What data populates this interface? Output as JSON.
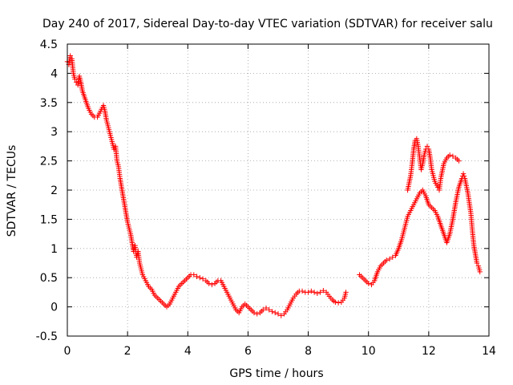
{
  "chart_data": {
    "type": "scatter",
    "title": "Day 240 of 2017, Sidereal Day-to-day VTEC variation (SDTVAR) for receiver salu",
    "xlabel": "GPS time / hours",
    "ylabel": "SDTVAR / TECUs",
    "xlim": [
      0,
      14
    ],
    "ylim": [
      -0.5,
      4.5
    ],
    "grid": true,
    "marker": "plus",
    "color": "#ff0000",
    "x_ticks": [
      0,
      2,
      4,
      6,
      8,
      10,
      12,
      14
    ],
    "x_tick_labels": [
      "0",
      "2",
      "4",
      "6",
      "8",
      "10",
      "12",
      "14"
    ],
    "y_ticks": [
      -0.5,
      0,
      0.5,
      1,
      1.5,
      2,
      2.5,
      3,
      3.5,
      4,
      4.5
    ],
    "y_tick_labels": [
      "-0.5",
      "0",
      "0.5",
      "1",
      "1.5",
      "2",
      "2.5",
      "3",
      "3.5",
      "4",
      "4.5"
    ],
    "series": [
      {
        "name": "segment-1",
        "points": [
          [
            0.0,
            4.2
          ],
          [
            0.05,
            4.15
          ],
          [
            0.1,
            4.3
          ],
          [
            0.15,
            4.25
          ],
          [
            0.2,
            4.0
          ],
          [
            0.25,
            3.9
          ],
          [
            0.3,
            3.85
          ],
          [
            0.35,
            3.8
          ],
          [
            0.4,
            3.95
          ],
          [
            0.45,
            3.85
          ],
          [
            0.5,
            3.7
          ],
          [
            0.6,
            3.55
          ],
          [
            0.7,
            3.4
          ],
          [
            0.8,
            3.3
          ],
          [
            0.9,
            3.25
          ],
          [
            1.0,
            3.25
          ],
          [
            1.1,
            3.35
          ],
          [
            1.2,
            3.45
          ],
          [
            1.25,
            3.35
          ],
          [
            1.3,
            3.2
          ],
          [
            1.4,
            3.0
          ],
          [
            1.5,
            2.8
          ],
          [
            1.55,
            2.7
          ],
          [
            1.6,
            2.75
          ],
          [
            1.65,
            2.5
          ],
          [
            1.7,
            2.4
          ],
          [
            1.75,
            2.2
          ],
          [
            1.8,
            2.05
          ],
          [
            1.85,
            1.9
          ],
          [
            1.9,
            1.75
          ],
          [
            1.95,
            1.6
          ],
          [
            2.0,
            1.45
          ],
          [
            2.05,
            1.35
          ],
          [
            2.1,
            1.25
          ],
          [
            2.15,
            1.1
          ],
          [
            2.2,
            0.95
          ],
          [
            2.25,
            1.05
          ],
          [
            2.3,
            0.85
          ],
          [
            2.35,
            0.95
          ],
          [
            2.4,
            0.75
          ],
          [
            2.45,
            0.65
          ],
          [
            2.5,
            0.55
          ],
          [
            2.6,
            0.45
          ],
          [
            2.7,
            0.35
          ],
          [
            2.8,
            0.3
          ],
          [
            2.9,
            0.2
          ],
          [
            3.0,
            0.15
          ],
          [
            3.1,
            0.1
          ],
          [
            3.2,
            0.05
          ],
          [
            3.3,
            0.0
          ],
          [
            3.4,
            0.05
          ],
          [
            3.5,
            0.15
          ],
          [
            3.6,
            0.25
          ],
          [
            3.7,
            0.35
          ],
          [
            3.8,
            0.4
          ],
          [
            3.9,
            0.45
          ],
          [
            4.0,
            0.5
          ],
          [
            4.1,
            0.55
          ],
          [
            4.2,
            0.55
          ],
          [
            4.3,
            0.52
          ],
          [
            4.4,
            0.5
          ],
          [
            4.5,
            0.48
          ],
          [
            4.6,
            0.45
          ],
          [
            4.7,
            0.4
          ],
          [
            4.8,
            0.38
          ],
          [
            4.9,
            0.4
          ],
          [
            5.0,
            0.45
          ],
          [
            5.1,
            0.45
          ],
          [
            5.2,
            0.35
          ],
          [
            5.3,
            0.25
          ],
          [
            5.4,
            0.15
          ],
          [
            5.5,
            0.05
          ],
          [
            5.6,
            -0.05
          ],
          [
            5.7,
            -0.1
          ],
          [
            5.8,
            0.0
          ],
          [
            5.9,
            0.05
          ],
          [
            6.0,
            0.0
          ],
          [
            6.1,
            -0.05
          ],
          [
            6.2,
            -0.1
          ],
          [
            6.3,
            -0.12
          ],
          [
            6.4,
            -0.1
          ],
          [
            6.5,
            -0.05
          ],
          [
            6.6,
            -0.02
          ],
          [
            6.7,
            -0.05
          ],
          [
            6.8,
            -0.08
          ],
          [
            6.9,
            -0.1
          ],
          [
            7.0,
            -0.12
          ],
          [
            7.1,
            -0.15
          ],
          [
            7.2,
            -0.12
          ],
          [
            7.3,
            -0.05
          ],
          [
            7.4,
            0.05
          ],
          [
            7.5,
            0.15
          ],
          [
            7.6,
            0.22
          ],
          [
            7.7,
            0.27
          ],
          [
            7.8,
            0.27
          ],
          [
            7.9,
            0.25
          ],
          [
            8.0,
            0.25
          ],
          [
            8.1,
            0.27
          ],
          [
            8.2,
            0.25
          ],
          [
            8.3,
            0.23
          ],
          [
            8.4,
            0.25
          ],
          [
            8.5,
            0.28
          ],
          [
            8.6,
            0.25
          ],
          [
            8.7,
            0.18
          ],
          [
            8.8,
            0.12
          ],
          [
            8.9,
            0.08
          ],
          [
            9.0,
            0.07
          ],
          [
            9.1,
            0.08
          ],
          [
            9.2,
            0.15
          ],
          [
            9.25,
            0.25
          ]
        ]
      },
      {
        "name": "segment-2",
        "points": [
          [
            9.7,
            0.55
          ],
          [
            9.8,
            0.5
          ],
          [
            9.9,
            0.45
          ],
          [
            10.0,
            0.4
          ],
          [
            10.1,
            0.38
          ],
          [
            10.2,
            0.45
          ],
          [
            10.3,
            0.6
          ],
          [
            10.4,
            0.7
          ],
          [
            10.5,
            0.75
          ],
          [
            10.6,
            0.8
          ],
          [
            10.7,
            0.82
          ],
          [
            10.8,
            0.85
          ],
          [
            10.9,
            0.88
          ],
          [
            11.0,
            1.0
          ],
          [
            11.1,
            1.15
          ],
          [
            11.2,
            1.35
          ],
          [
            11.3,
            1.55
          ],
          [
            11.4,
            1.65
          ],
          [
            11.5,
            1.75
          ],
          [
            11.6,
            1.85
          ],
          [
            11.7,
            1.95
          ],
          [
            11.8,
            2.0
          ],
          [
            11.9,
            1.9
          ],
          [
            12.0,
            1.75
          ],
          [
            12.1,
            1.7
          ],
          [
            12.2,
            1.65
          ],
          [
            12.3,
            1.55
          ],
          [
            12.4,
            1.4
          ],
          [
            12.5,
            1.25
          ],
          [
            12.6,
            1.1
          ],
          [
            12.7,
            1.25
          ],
          [
            12.8,
            1.5
          ],
          [
            12.9,
            1.8
          ],
          [
            13.0,
            2.05
          ],
          [
            13.1,
            2.2
          ],
          [
            13.15,
            2.28
          ],
          [
            13.2,
            2.2
          ],
          [
            13.3,
            1.95
          ],
          [
            13.4,
            1.6
          ],
          [
            13.45,
            1.3
          ],
          [
            13.5,
            1.05
          ],
          [
            13.55,
            0.9
          ],
          [
            13.6,
            0.75
          ],
          [
            13.65,
            0.7
          ],
          [
            13.7,
            0.6
          ]
        ]
      },
      {
        "name": "segment-3",
        "points": [
          [
            11.3,
            2.0
          ],
          [
            11.4,
            2.25
          ],
          [
            11.45,
            2.45
          ],
          [
            11.5,
            2.7
          ],
          [
            11.55,
            2.85
          ],
          [
            11.6,
            2.88
          ],
          [
            11.65,
            2.75
          ],
          [
            11.7,
            2.55
          ],
          [
            11.75,
            2.35
          ],
          [
            11.8,
            2.45
          ],
          [
            11.85,
            2.6
          ],
          [
            11.9,
            2.7
          ],
          [
            11.95,
            2.75
          ],
          [
            12.0,
            2.7
          ],
          [
            12.05,
            2.55
          ],
          [
            12.1,
            2.35
          ],
          [
            12.2,
            2.15
          ],
          [
            12.3,
            2.05
          ],
          [
            12.35,
            2.0
          ],
          [
            12.4,
            2.2
          ],
          [
            12.5,
            2.45
          ],
          [
            12.6,
            2.55
          ],
          [
            12.7,
            2.6
          ],
          [
            12.8,
            2.58
          ],
          [
            12.9,
            2.55
          ],
          [
            13.0,
            2.5
          ]
        ]
      }
    ]
  }
}
